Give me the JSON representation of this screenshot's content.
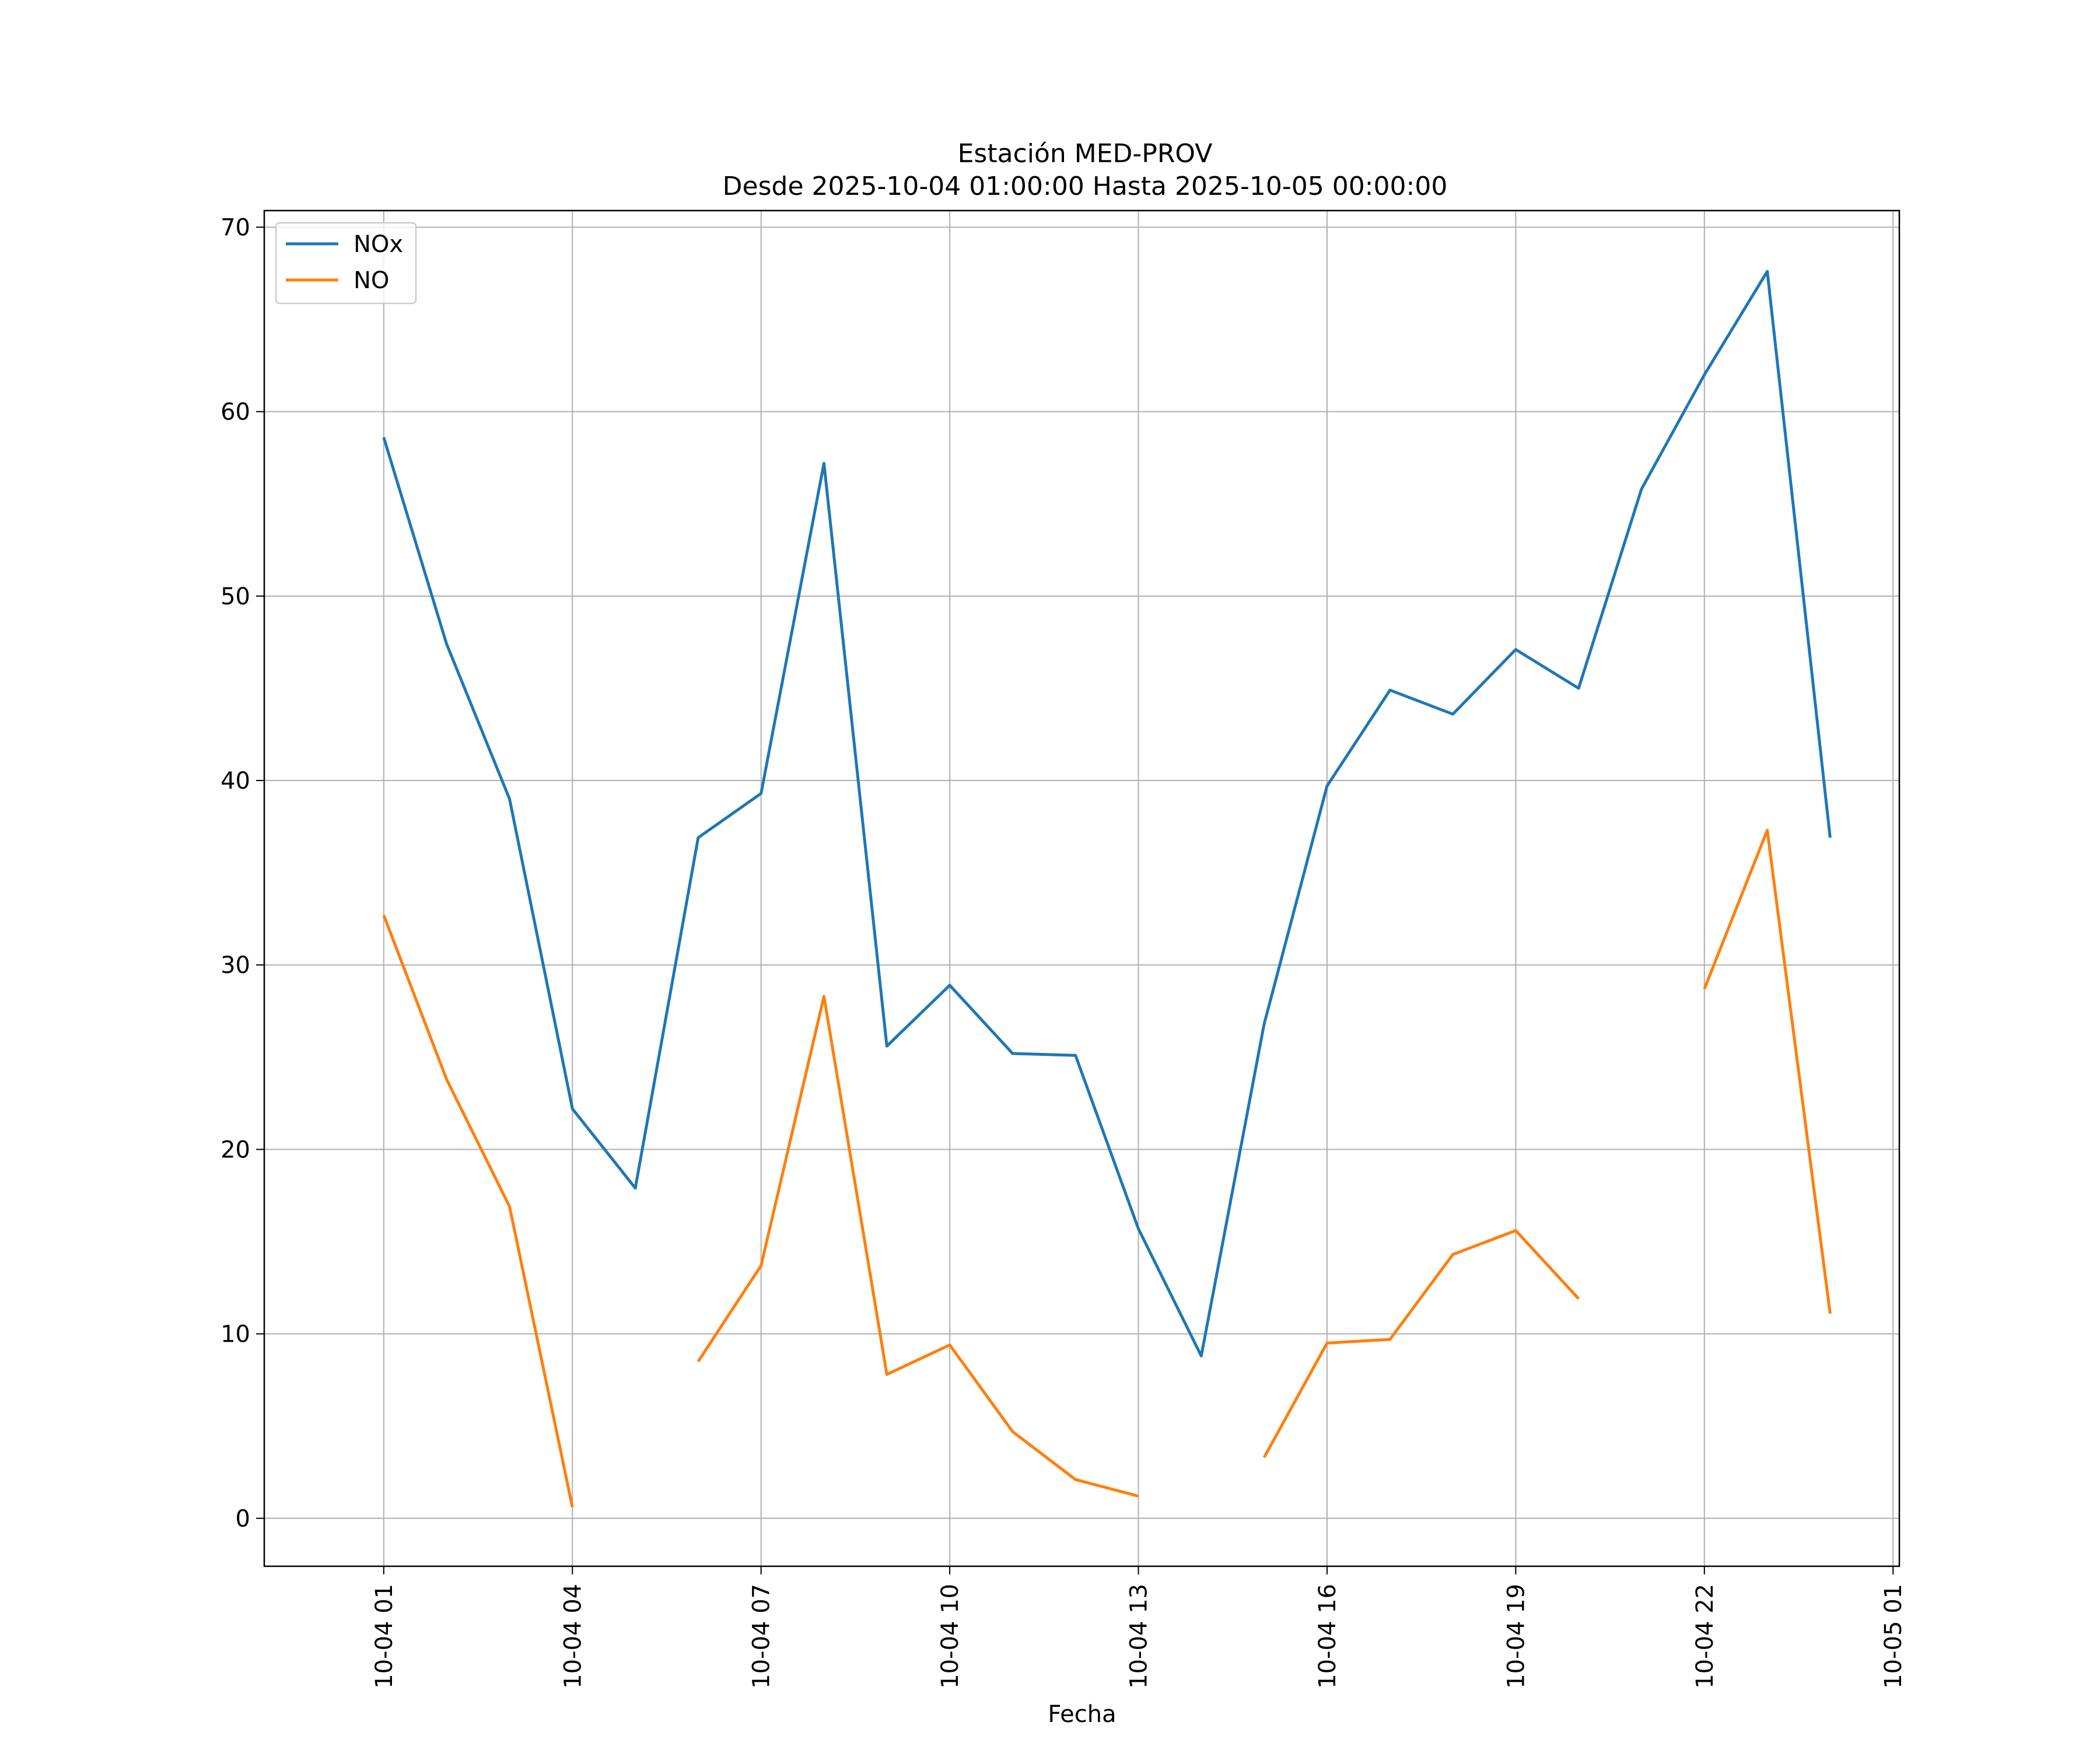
{
  "chart_data": {
    "type": "line",
    "title": "Estación MED-PROV",
    "subtitle": "Desde 2025-10-04 01:00:00 Hasta 2025-10-05 00:00:00",
    "xlabel": "Fecha",
    "ylabel": "",
    "x_unit": "hours since 2025-10-04 00:00",
    "xlim": [
      -0.9,
      25.1
    ],
    "ylim": [
      -2.6,
      70.9
    ],
    "grid": true,
    "legend_position": "upper-left",
    "yticks": [
      0,
      10,
      20,
      30,
      40,
      50,
      60,
      70
    ],
    "xticks": [
      {
        "value": 1,
        "label": "10-04 01"
      },
      {
        "value": 4,
        "label": "10-04 04"
      },
      {
        "value": 7,
        "label": "10-04 07"
      },
      {
        "value": 10,
        "label": "10-04 10"
      },
      {
        "value": 13,
        "label": "10-04 13"
      },
      {
        "value": 16,
        "label": "10-04 16"
      },
      {
        "value": 19,
        "label": "10-04 19"
      },
      {
        "value": 22,
        "label": "10-04 22"
      },
      {
        "value": 25,
        "label": "10-05 01"
      }
    ],
    "x": [
      1,
      2,
      3,
      4,
      5,
      6,
      7,
      8,
      9,
      10,
      11,
      12,
      13,
      14,
      15,
      16,
      17,
      18,
      19,
      20,
      21,
      22,
      23,
      24
    ],
    "series": [
      {
        "name": "NOx",
        "color": "#1f77b4",
        "values": [
          58.6,
          47.4,
          39.0,
          22.2,
          17.9,
          36.9,
          39.3,
          57.2,
          25.6,
          28.9,
          25.2,
          25.1,
          15.7,
          8.8,
          26.8,
          39.7,
          44.9,
          43.6,
          47.1,
          45.0,
          55.8,
          62.0,
          67.6,
          36.9
        ]
      },
      {
        "name": "NO",
        "color": "#ff7f0e",
        "values": [
          32.7,
          23.8,
          16.9,
          0.6,
          null,
          8.5,
          13.7,
          28.3,
          7.8,
          9.4,
          4.7,
          2.1,
          1.2,
          null,
          3.3,
          9.5,
          9.7,
          14.3,
          15.6,
          11.9,
          null,
          28.7,
          37.3,
          11.1
        ]
      }
    ]
  }
}
